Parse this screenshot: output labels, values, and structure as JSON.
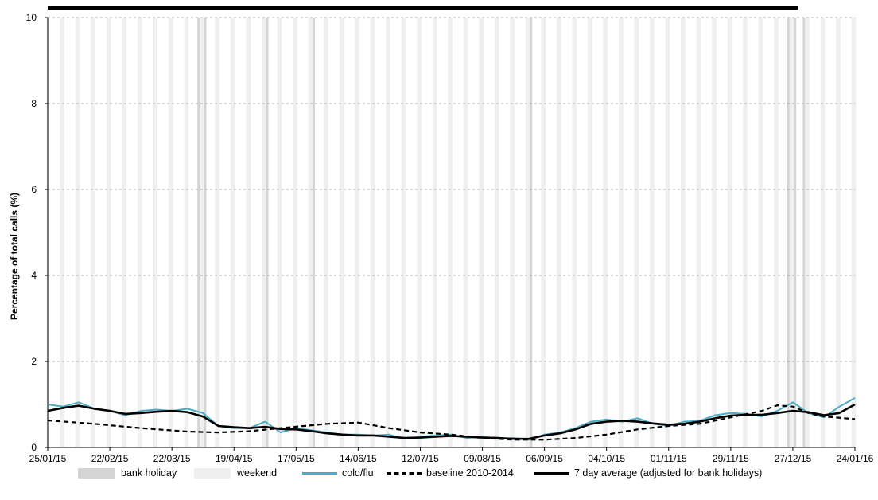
{
  "chart_data": {
    "type": "line",
    "title": "",
    "xlabel": "",
    "ylabel": "Percentage of total calls (%)",
    "ylim": [
      0,
      10
    ],
    "xlim": [
      "2015-01-25",
      "2016-01-24"
    ],
    "y_ticks": [
      "0",
      "2",
      "4",
      "6",
      "8",
      "10"
    ],
    "x_ticks": [
      "25/01/15",
      "22/02/15",
      "22/03/15",
      "19/04/15",
      "17/05/15",
      "14/06/15",
      "12/07/15",
      "09/08/15",
      "06/09/15",
      "04/10/15",
      "01/11/15",
      "29/11/15",
      "27/12/15",
      "24/01/16"
    ],
    "grid": "horizontal dashed",
    "legend_position": "bottom",
    "bank_holidays": [
      "2015-04-03",
      "2015-04-06",
      "2015-05-04",
      "2015-05-25",
      "2015-08-31",
      "2015-12-25",
      "2015-12-28",
      "2016-01-01"
    ],
    "weekend_shading": true,
    "colors": {
      "cold_flu": "#4bacc6",
      "baseline": "#000000",
      "average": "#000000",
      "bank_holiday": "#d4d4d4",
      "weekend": "#efefef",
      "top_bar": "#000000"
    },
    "series": [
      {
        "name": "cold/flu",
        "style": "solid-teal-thin",
        "x": [
          "2015-01-25",
          "2015-02-01",
          "2015-02-08",
          "2015-02-15",
          "2015-02-22",
          "2015-03-01",
          "2015-03-08",
          "2015-03-15",
          "2015-03-22",
          "2015-03-29",
          "2015-04-05",
          "2015-04-12",
          "2015-04-19",
          "2015-04-26",
          "2015-05-03",
          "2015-05-10",
          "2015-05-17",
          "2015-05-24",
          "2015-05-31",
          "2015-06-07",
          "2015-06-14",
          "2015-06-21",
          "2015-06-28",
          "2015-07-05",
          "2015-07-12",
          "2015-07-19",
          "2015-07-26",
          "2015-08-02",
          "2015-08-09",
          "2015-08-16",
          "2015-08-23",
          "2015-08-30",
          "2015-09-06",
          "2015-09-13",
          "2015-09-20",
          "2015-09-27",
          "2015-10-04",
          "2015-10-11",
          "2015-10-18",
          "2015-10-25",
          "2015-11-01",
          "2015-11-08",
          "2015-11-15",
          "2015-11-22",
          "2015-11-29",
          "2015-12-06",
          "2015-12-13",
          "2015-12-20",
          "2015-12-27",
          "2016-01-03",
          "2016-01-10",
          "2016-01-17",
          "2016-01-24"
        ],
        "values": [
          1.0,
          0.95,
          1.05,
          0.9,
          0.85,
          0.75,
          0.85,
          0.88,
          0.85,
          0.9,
          0.8,
          0.5,
          0.45,
          0.45,
          0.6,
          0.35,
          0.45,
          0.4,
          0.35,
          0.3,
          0.3,
          0.28,
          0.3,
          0.2,
          0.25,
          0.28,
          0.3,
          0.22,
          0.25,
          0.2,
          0.22,
          0.18,
          0.3,
          0.35,
          0.45,
          0.6,
          0.65,
          0.6,
          0.68,
          0.55,
          0.5,
          0.6,
          0.62,
          0.75,
          0.8,
          0.78,
          0.72,
          0.85,
          1.05,
          0.8,
          0.7,
          0.95,
          1.15
        ]
      },
      {
        "name": "baseline 2010-2014",
        "style": "dashed-black",
        "x": [
          "2015-01-25",
          "2015-02-15",
          "2015-03-08",
          "2015-03-29",
          "2015-04-12",
          "2015-04-26",
          "2015-05-10",
          "2015-05-31",
          "2015-06-14",
          "2015-06-28",
          "2015-07-12",
          "2015-07-26",
          "2015-08-09",
          "2015-08-23",
          "2015-09-06",
          "2015-09-20",
          "2015-10-04",
          "2015-10-18",
          "2015-11-01",
          "2015-11-15",
          "2015-11-29",
          "2015-12-13",
          "2015-12-20",
          "2015-12-27",
          "2016-01-03",
          "2016-01-10",
          "2016-01-24"
        ],
        "values": [
          0.63,
          0.55,
          0.45,
          0.37,
          0.35,
          0.38,
          0.45,
          0.55,
          0.58,
          0.45,
          0.35,
          0.3,
          0.22,
          0.18,
          0.18,
          0.22,
          0.3,
          0.42,
          0.5,
          0.55,
          0.7,
          0.85,
          0.98,
          0.95,
          0.8,
          0.72,
          0.66
        ]
      },
      {
        "name": "7 day average (adjusted for bank holidays)",
        "style": "solid-black-thick",
        "x": [
          "2015-01-25",
          "2015-02-01",
          "2015-02-08",
          "2015-02-15",
          "2015-02-22",
          "2015-03-01",
          "2015-03-08",
          "2015-03-15",
          "2015-03-22",
          "2015-03-29",
          "2015-04-05",
          "2015-04-12",
          "2015-04-19",
          "2015-04-26",
          "2015-05-03",
          "2015-05-10",
          "2015-05-17",
          "2015-05-24",
          "2015-05-31",
          "2015-06-07",
          "2015-06-14",
          "2015-06-21",
          "2015-06-28",
          "2015-07-05",
          "2015-07-12",
          "2015-07-19",
          "2015-07-26",
          "2015-08-02",
          "2015-08-09",
          "2015-08-16",
          "2015-08-23",
          "2015-08-30",
          "2015-09-06",
          "2015-09-13",
          "2015-09-20",
          "2015-09-27",
          "2015-10-04",
          "2015-10-11",
          "2015-10-18",
          "2015-10-25",
          "2015-11-01",
          "2015-11-08",
          "2015-11-15",
          "2015-11-22",
          "2015-11-29",
          "2015-12-06",
          "2015-12-13",
          "2015-12-20",
          "2015-12-27",
          "2016-01-03",
          "2016-01-10",
          "2016-01-17",
          "2016-01-24"
        ],
        "values": [
          0.85,
          0.92,
          0.97,
          0.9,
          0.85,
          0.78,
          0.8,
          0.83,
          0.85,
          0.82,
          0.72,
          0.5,
          0.47,
          0.45,
          0.48,
          0.43,
          0.42,
          0.38,
          0.33,
          0.3,
          0.28,
          0.28,
          0.25,
          0.22,
          0.23,
          0.25,
          0.27,
          0.25,
          0.23,
          0.22,
          0.2,
          0.2,
          0.28,
          0.33,
          0.42,
          0.55,
          0.6,
          0.62,
          0.6,
          0.56,
          0.53,
          0.55,
          0.6,
          0.68,
          0.74,
          0.76,
          0.76,
          0.8,
          0.85,
          0.82,
          0.75,
          0.8,
          1.0
        ]
      }
    ]
  },
  "legend": {
    "bank_holiday": "bank holiday",
    "weekend": "weekend",
    "cold_flu": "cold/flu",
    "baseline": "baseline 2010-2014",
    "average": "7 day average (adjusted for bank holidays)"
  }
}
